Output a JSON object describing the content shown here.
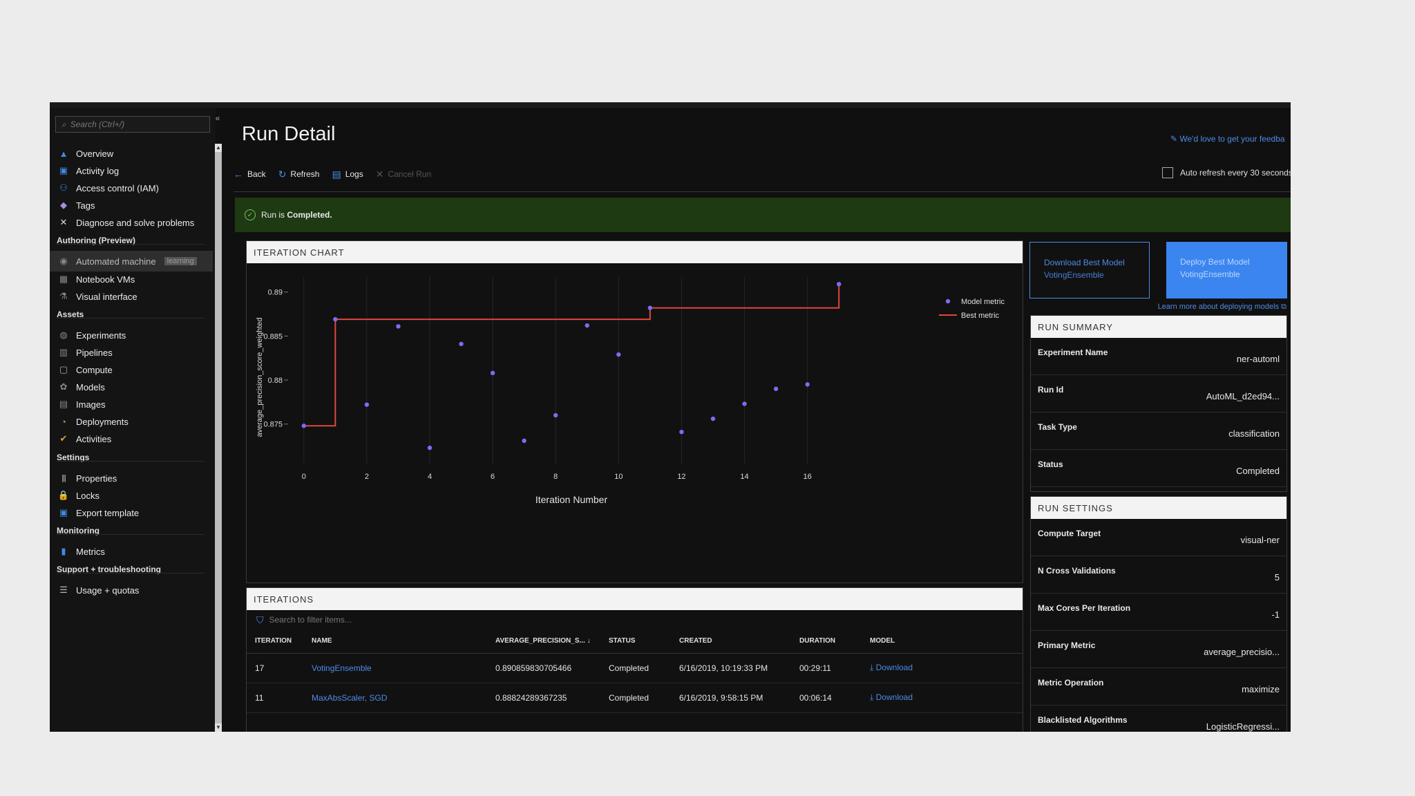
{
  "sidebar": {
    "search_placeholder": "Search (Ctrl+/)",
    "collapse": "«",
    "items_top": [
      {
        "label": "Overview",
        "icon": "overview-icon"
      },
      {
        "label": "Activity log",
        "icon": "activity-log-icon"
      },
      {
        "label": "Access control (IAM)",
        "icon": "people-icon"
      },
      {
        "label": "Tags",
        "icon": "tag-icon"
      },
      {
        "label": "Diagnose and solve problems",
        "icon": "wrench-icon"
      }
    ],
    "section_authoring": "Authoring (Preview)",
    "items_authoring": [
      {
        "label": "Automated machine",
        "badge": "learning",
        "icon": "automl-icon",
        "active": true
      },
      {
        "label": "Notebook VMs",
        "icon": "notebook-icon"
      },
      {
        "label": "Visual interface",
        "icon": "visual-interface-icon"
      }
    ],
    "section_assets": "Assets",
    "items_assets": [
      {
        "label": "Experiments",
        "icon": "experiments-icon"
      },
      {
        "label": "Pipelines",
        "icon": "pipelines-icon"
      },
      {
        "label": "Compute",
        "icon": "compute-icon"
      },
      {
        "label": "Models",
        "icon": "models-icon"
      },
      {
        "label": "Images",
        "icon": "images-icon"
      },
      {
        "label": "Deployments",
        "icon": "deployments-icon"
      },
      {
        "label": "Activities",
        "icon": "activities-icon"
      }
    ],
    "section_settings": "Settings",
    "items_settings": [
      {
        "label": "Properties",
        "icon": "properties-icon"
      },
      {
        "label": "Locks",
        "icon": "lock-icon"
      },
      {
        "label": "Export template",
        "icon": "export-template-icon"
      }
    ],
    "section_monitoring": "Monitoring",
    "items_monitoring": [
      {
        "label": "Metrics",
        "icon": "metrics-icon"
      }
    ],
    "section_support": "Support + troubleshooting",
    "items_support": [
      {
        "label": "Usage + quotas",
        "icon": "usage-icon"
      }
    ]
  },
  "header": {
    "title": "Run Detail",
    "feedback": "We'd love to get your feedba"
  },
  "toolbar": {
    "back": "Back",
    "refresh": "Refresh",
    "logs": "Logs",
    "cancel": "Cancel Run",
    "auto_refresh": "Auto refresh every 30 seconds"
  },
  "status": {
    "prefix": "Run is ",
    "value": "Completed."
  },
  "chart_panel": {
    "title": "ITERATION CHART"
  },
  "chart_data": {
    "type": "scatter",
    "xlabel": "Iteration Number",
    "ylabel": "average_precision_score_weighted",
    "xlim": [
      -0.5,
      17.5
    ],
    "ylim": [
      0.8705,
      0.8917
    ],
    "xticks": [
      0,
      2,
      4,
      6,
      8,
      10,
      12,
      14,
      16
    ],
    "yticks": [
      0.875,
      0.88,
      0.885,
      0.89
    ],
    "ytick_labels": [
      "0.875",
      "0.88",
      "0.885",
      "0.89"
    ],
    "grid": true,
    "legend_position": "top-right",
    "series": [
      {
        "name": "Model metric",
        "kind": "points",
        "color": "#7b6cf6",
        "x": [
          0,
          1,
          2,
          3,
          4,
          5,
          6,
          7,
          8,
          9,
          10,
          11,
          12,
          13,
          14,
          15,
          16,
          17
        ],
        "y": [
          0.8748,
          0.8869,
          0.8772,
          0.8861,
          0.8723,
          0.8841,
          0.8808,
          0.8731,
          0.876,
          0.8862,
          0.8829,
          0.8882,
          0.8741,
          0.8756,
          0.8773,
          0.879,
          0.8795,
          0.8909
        ]
      },
      {
        "name": "Best metric",
        "kind": "step",
        "color": "#e0473b",
        "x": [
          0,
          1,
          11,
          17
        ],
        "y": [
          0.8748,
          0.8869,
          0.8882,
          0.8909
        ]
      }
    ]
  },
  "iterations": {
    "title": "ITERATIONS",
    "filter_placeholder": "Search to filter items...",
    "columns": [
      "ITERATION",
      "NAME",
      "AVERAGE_PRECISION_S...",
      "STATUS",
      "CREATED",
      "DURATION",
      "MODEL"
    ],
    "sort_indicator": "↓",
    "rows": [
      {
        "iteration": "17",
        "name": "VotingEnsemble",
        "metric": "0.890859830705466",
        "status": "Completed",
        "created": "6/16/2019, 10:19:33 PM",
        "duration": "00:29:11",
        "model": "Download"
      },
      {
        "iteration": "11",
        "name": "MaxAbsScaler, SGD",
        "metric": "0.88824289367235",
        "status": "Completed",
        "created": "6/16/2019, 9:58:15 PM",
        "duration": "00:06:14",
        "model": "Download"
      }
    ]
  },
  "actions": {
    "download_title": "Download Best Model",
    "download_sub": "VotingEnsemble",
    "deploy_title": "Deploy Best Model",
    "deploy_sub": "VotingEnsemble",
    "learn_more": "Learn more about deploying models"
  },
  "run_summary": {
    "title": "RUN SUMMARY",
    "rows": [
      {
        "key": "Experiment Name",
        "value": "ner-automl"
      },
      {
        "key": "Run Id",
        "value": "AutoML_d2ed94..."
      },
      {
        "key": "Task Type",
        "value": "classification"
      },
      {
        "key": "Status",
        "value": "Completed"
      }
    ]
  },
  "run_settings": {
    "title": "RUN SETTINGS",
    "rows": [
      {
        "key": "Compute Target",
        "value": "visual-ner"
      },
      {
        "key": "N Cross Validations",
        "value": "5"
      },
      {
        "key": "Max Cores Per Iteration",
        "value": "-1"
      },
      {
        "key": "Primary Metric",
        "value": "average_precisio..."
      },
      {
        "key": "Metric Operation",
        "value": "maximize"
      },
      {
        "key": "Blacklisted Algorithms",
        "value": "LogisticRegressi..."
      }
    ]
  },
  "colors": {
    "accent": "#4d8be8",
    "success_banner": "#1e3a13",
    "deploy_button": "#3b85f0",
    "model_metric": "#7b6cf6",
    "best_metric": "#e0473b"
  }
}
